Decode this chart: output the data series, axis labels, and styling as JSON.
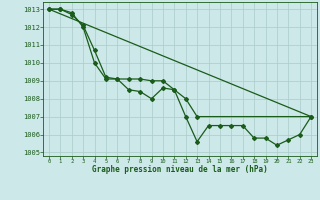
{
  "title": "Graphe pression niveau de la mer (hPa)",
  "bg_color": "#cce8e8",
  "grid_color": "#aacccc",
  "line_color": "#1a5c1a",
  "xlim": [
    -0.5,
    23.5
  ],
  "ylim": [
    1004.8,
    1013.4
  ],
  "yticks": [
    1005,
    1006,
    1007,
    1008,
    1009,
    1010,
    1011,
    1012,
    1013
  ],
  "xticks": [
    0,
    1,
    2,
    3,
    4,
    5,
    6,
    7,
    8,
    9,
    10,
    11,
    12,
    13,
    14,
    15,
    16,
    17,
    18,
    19,
    20,
    21,
    22,
    23
  ],
  "series1_x": [
    0,
    1,
    2,
    3,
    4,
    5,
    6,
    7,
    8,
    9,
    10,
    11,
    12,
    13,
    14,
    15,
    16,
    17,
    18,
    19,
    20,
    21,
    22,
    23
  ],
  "series1_y": [
    1013,
    1013,
    1012.7,
    1012.1,
    1010.7,
    1009.2,
    1009.1,
    1008.5,
    1008.4,
    1008.0,
    1008.6,
    1008.5,
    1007.0,
    1005.6,
    1006.5,
    1006.5,
    1006.5,
    1006.5,
    1005.8,
    1005.8,
    1005.4,
    1005.7,
    1006.0,
    1007.0
  ],
  "series2_x": [
    0,
    1,
    2,
    3,
    4,
    5,
    6,
    7,
    8,
    9,
    10,
    11,
    12,
    13,
    23
  ],
  "series2_y": [
    1013,
    1013,
    1012.8,
    1012.0,
    1010.0,
    1009.1,
    1009.1,
    1009.1,
    1009.1,
    1009.0,
    1009.0,
    1008.5,
    1008.0,
    1007.0,
    1007.0
  ],
  "series3_x": [
    0,
    23
  ],
  "series3_y": [
    1013,
    1007.0
  ]
}
